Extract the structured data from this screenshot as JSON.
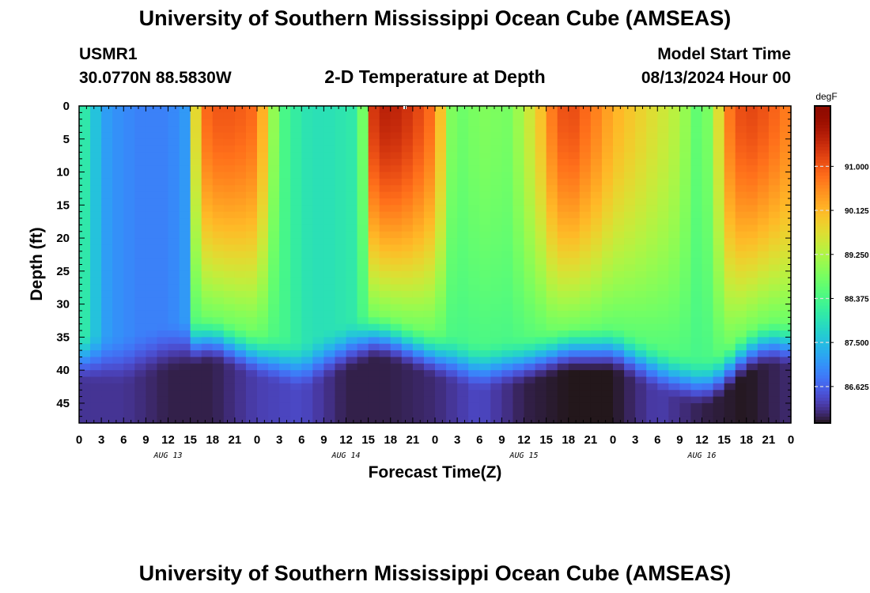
{
  "page": {
    "title_top": "University of Southern Mississippi Ocean Cube (AMSEAS)",
    "title_bottom": "University of Southern Mississippi Ocean Cube (AMSEAS)",
    "station_id": "USMR1",
    "station_coords": "30.0770N  88.5830W",
    "plot_title": "2-D Temperature at Depth",
    "model_start_label": "Model Start Time",
    "model_start_value": "08/13/2024 Hour 00"
  },
  "chart_data": {
    "type": "heatmap",
    "title": "2-D Temperature at Depth",
    "xlabel": "Forecast Time(Z)",
    "ylabel": "Depth (ft)",
    "x_unit": "hours since 08/13/2024 00Z",
    "xlim": [
      0,
      96
    ],
    "ylim": [
      48,
      0
    ],
    "x_ticks": [
      0,
      3,
      6,
      9,
      12,
      15,
      18,
      21,
      24,
      27,
      30,
      33,
      36,
      39,
      42,
      45,
      48,
      51,
      54,
      57,
      60,
      63,
      66,
      69,
      72,
      75,
      78,
      81,
      84,
      87,
      90,
      93,
      96
    ],
    "x_tick_labels": [
      "0",
      "3",
      "6",
      "9",
      "12",
      "15",
      "18",
      "21",
      "0",
      "3",
      "6",
      "9",
      "12",
      "15",
      "18",
      "21",
      "0",
      "3",
      "6",
      "9",
      "12",
      "15",
      "18",
      "21",
      "0",
      "3",
      "6",
      "9",
      "12",
      "15",
      "18",
      "21",
      "0"
    ],
    "day_labels": [
      {
        "x": 12,
        "text": "AUG 13"
      },
      {
        "x": 36,
        "text": "AUG 14"
      },
      {
        "x": 60,
        "text": "AUG 15"
      },
      {
        "x": 84,
        "text": "AUG 16"
      }
    ],
    "y_ticks": [
      0,
      5,
      10,
      15,
      20,
      25,
      30,
      35,
      40,
      45
    ],
    "y_tick_labels": [
      "0",
      "5",
      "10",
      "15",
      "20",
      "25",
      "30",
      "35",
      "40",
      "45"
    ],
    "colorbar": {
      "unit": "degF",
      "range": [
        85.9,
        92.2
      ],
      "ticks": [
        86.625,
        87.5,
        88.375,
        89.25,
        90.125,
        91.0
      ],
      "tick_labels": [
        "86.625",
        "87.500",
        "88.375",
        "89.250",
        "90.125",
        "91.000"
      ],
      "colormap": "turbo"
    },
    "surface_temp": {
      "x": [
        0,
        2,
        4,
        8,
        12,
        15,
        16,
        18,
        21,
        24,
        26,
        27,
        30,
        33,
        38,
        39,
        40,
        42,
        45,
        48,
        50,
        52,
        54,
        58,
        60,
        62,
        64,
        66,
        70,
        72,
        76,
        80,
        82,
        84,
        86,
        88,
        90,
        93,
        96
      ],
      "temps": [
        88.3,
        87.6,
        87.1,
        86.9,
        86.9,
        87.2,
        90.6,
        91.0,
        91.0,
        90.8,
        89.2,
        88.5,
        88.0,
        87.9,
        88.1,
        90.8,
        91.5,
        91.6,
        91.3,
        90.7,
        88.9,
        88.7,
        88.9,
        88.8,
        89.3,
        89.9,
        90.8,
        91.2,
        90.6,
        90.2,
        89.8,
        89.4,
        89.0,
        88.4,
        89.5,
        90.9,
        91.2,
        91.0,
        90.6
      ]
    },
    "bottom_layer": {
      "x": [
        0,
        6,
        12,
        18,
        24,
        30,
        36,
        42,
        48,
        54,
        60,
        66,
        72,
        78,
        84,
        90,
        96
      ],
      "temps": [
        86.2,
        86.2,
        86.0,
        86.0,
        86.3,
        86.4,
        86.0,
        86.0,
        86.1,
        86.4,
        86.0,
        85.9,
        85.9,
        86.3,
        86.0,
        85.9,
        86.1
      ]
    },
    "interface_depth": {
      "x": [
        0,
        6,
        9,
        12,
        18,
        24,
        30,
        36,
        40,
        42,
        48,
        54,
        60,
        66,
        72,
        76,
        80,
        84,
        86,
        90,
        93,
        96
      ],
      "depth_ft": [
        38,
        38.5,
        37.5,
        36.5,
        35.0,
        37.5,
        39.5,
        36.5,
        34.5,
        35.0,
        37.5,
        39.5,
        38.5,
        36.5,
        36.5,
        38.5,
        40.5,
        42.0,
        41.0,
        37.0,
        35.5,
        36.0
      ]
    }
  }
}
